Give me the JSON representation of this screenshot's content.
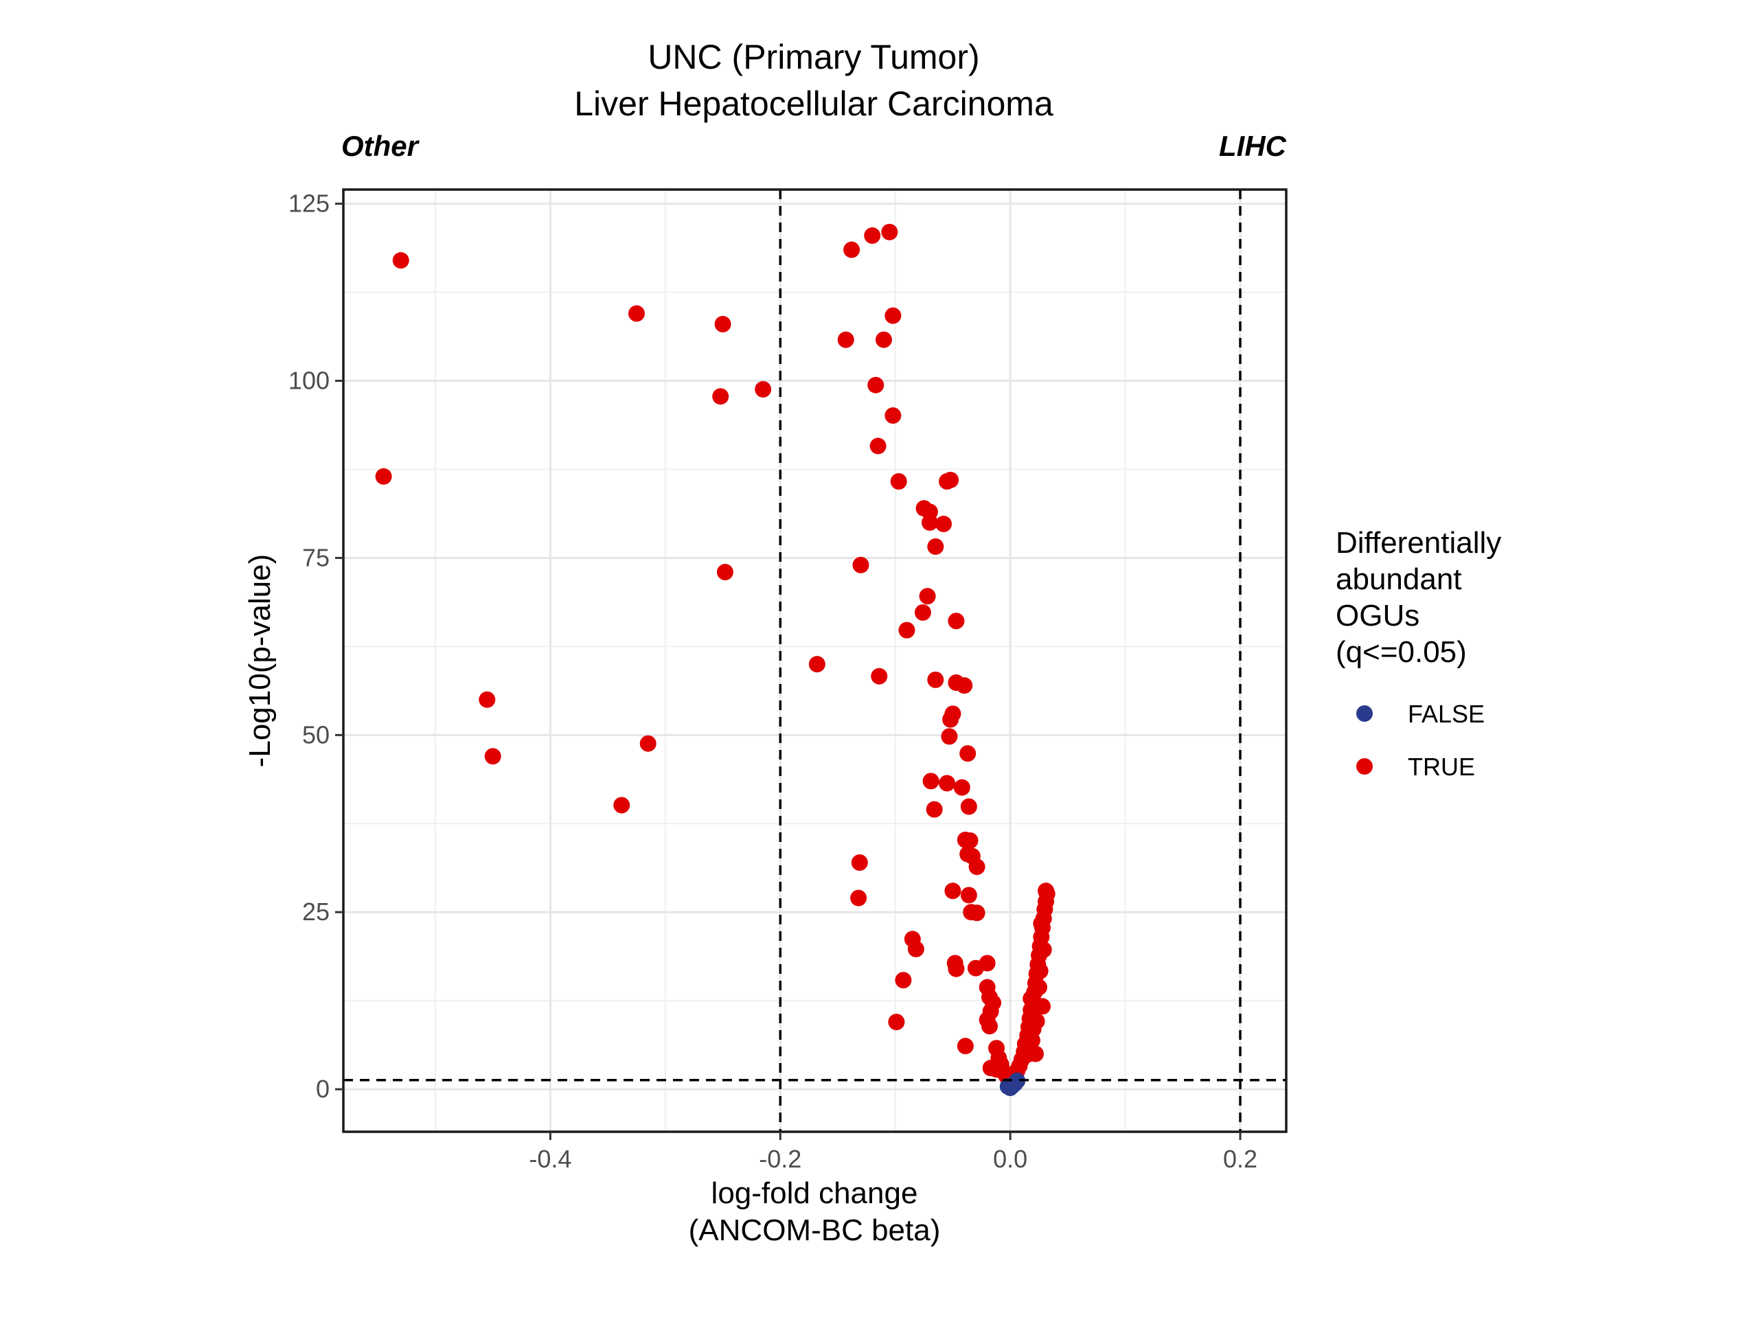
{
  "chart_data": {
    "type": "scatter",
    "title": "UNC (Primary Tumor)",
    "subtitle": "Liver Hepatocellular Carcinoma",
    "left_group_label": "Other",
    "right_group_label": "LIHC",
    "xlabel_line1": "log-fold change",
    "xlabel_line2": "(ANCOM-BC beta)",
    "ylabel": "-Log10(p-value)",
    "xlim": [
      -0.58,
      0.24
    ],
    "ylim": [
      -6,
      127
    ],
    "x_ticks": [
      -0.4,
      -0.2,
      0.0,
      0.2
    ],
    "x_tick_labels": [
      "-0.4",
      "-0.2",
      "0.0",
      "0.2"
    ],
    "y_ticks": [
      0,
      25,
      50,
      75,
      100,
      125
    ],
    "y_tick_labels": [
      "0",
      "25",
      "50",
      "75",
      "100",
      "125"
    ],
    "grid": true,
    "reference_lines": {
      "x": [
        -0.2,
        0.2
      ],
      "y": [
        1.3
      ]
    },
    "legend": {
      "title_lines": [
        "Differentially",
        "abundant",
        "OGUs",
        "(q<=0.05)"
      ],
      "position": "right",
      "items": [
        {
          "label": "FALSE",
          "color": "#2a3a8c"
        },
        {
          "label": "TRUE",
          "color": "#e00000"
        }
      ]
    },
    "series": [
      {
        "name": "TRUE",
        "color": "#e00000",
        "points": [
          [
            -0.53,
            117
          ],
          [
            -0.545,
            86.5
          ],
          [
            -0.325,
            109.5
          ],
          [
            -0.25,
            108
          ],
          [
            -0.252,
            97.8
          ],
          [
            -0.215,
            98.8
          ],
          [
            -0.248,
            73
          ],
          [
            -0.455,
            55
          ],
          [
            -0.45,
            47
          ],
          [
            -0.315,
            48.8
          ],
          [
            -0.338,
            40.1
          ],
          [
            -0.168,
            60
          ],
          [
            -0.138,
            118.5
          ],
          [
            -0.12,
            120.5
          ],
          [
            -0.105,
            121
          ],
          [
            -0.102,
            109.2
          ],
          [
            -0.143,
            105.8
          ],
          [
            -0.11,
            105.8
          ],
          [
            -0.117,
            99.4
          ],
          [
            -0.102,
            95.1
          ],
          [
            -0.115,
            90.8
          ],
          [
            -0.097,
            85.8
          ],
          [
            -0.052,
            86
          ],
          [
            -0.055,
            85.8
          ],
          [
            -0.075,
            82
          ],
          [
            -0.07,
            81.5
          ],
          [
            -0.07,
            80
          ],
          [
            -0.058,
            79.8
          ],
          [
            -0.065,
            76.6
          ],
          [
            -0.13,
            74
          ],
          [
            -0.072,
            69.6
          ],
          [
            -0.076,
            67.3
          ],
          [
            -0.09,
            64.8
          ],
          [
            -0.047,
            66.1
          ],
          [
            -0.114,
            58.3
          ],
          [
            -0.065,
            57.8
          ],
          [
            -0.047,
            57.4
          ],
          [
            -0.04,
            57
          ],
          [
            -0.05,
            53
          ],
          [
            -0.052,
            52.2
          ],
          [
            -0.053,
            49.8
          ],
          [
            -0.037,
            47.4
          ],
          [
            -0.069,
            43.5
          ],
          [
            -0.055,
            43.2
          ],
          [
            -0.042,
            42.6
          ],
          [
            -0.066,
            39.5
          ],
          [
            -0.036,
            39.9
          ],
          [
            -0.039,
            35.2
          ],
          [
            -0.035,
            35.1
          ],
          [
            -0.037,
            33.2
          ],
          [
            -0.033,
            32.9
          ],
          [
            -0.029,
            31.4
          ],
          [
            -0.131,
            32
          ],
          [
            -0.132,
            27
          ],
          [
            -0.05,
            28
          ],
          [
            -0.036,
            27.4
          ],
          [
            -0.034,
            25
          ],
          [
            -0.029,
            24.9
          ],
          [
            -0.085,
            21.2
          ],
          [
            -0.082,
            19.8
          ],
          [
            -0.048,
            17.8
          ],
          [
            -0.047,
            17
          ],
          [
            -0.03,
            17.1
          ],
          [
            -0.02,
            17.8
          ],
          [
            -0.093,
            15.4
          ],
          [
            -0.02,
            14.4
          ],
          [
            -0.018,
            13
          ],
          [
            -0.015,
            12.2
          ],
          [
            -0.017,
            11
          ],
          [
            -0.02,
            9.8
          ],
          [
            -0.018,
            8.9
          ],
          [
            -0.099,
            9.5
          ],
          [
            -0.039,
            6.1
          ],
          [
            -0.012,
            5.8
          ],
          [
            -0.01,
            4.4
          ],
          [
            -0.008,
            3.5
          ],
          [
            -0.017,
            3
          ],
          [
            -0.012,
            2.8
          ],
          [
            -0.005,
            2.3
          ],
          [
            -0.003,
            1.8
          ],
          [
            0.004,
            1.9
          ],
          [
            0.006,
            2.6
          ],
          [
            0.008,
            3.3
          ],
          [
            0.01,
            4.2
          ],
          [
            0.012,
            5.3
          ],
          [
            0.013,
            6.4
          ],
          [
            0.015,
            7.6
          ],
          [
            0.016,
            8.8
          ],
          [
            0.017,
            10
          ],
          [
            0.018,
            11.2
          ],
          [
            0.02,
            12.4
          ],
          [
            0.021,
            13.7
          ],
          [
            0.022,
            15
          ],
          [
            0.023,
            16.3
          ],
          [
            0.024,
            17.6
          ],
          [
            0.025,
            18.9
          ],
          [
            0.026,
            20.2
          ],
          [
            0.027,
            21.5
          ],
          [
            0.028,
            22.8
          ],
          [
            0.029,
            24.1
          ],
          [
            0.03,
            25.4
          ],
          [
            0.031,
            26.5
          ],
          [
            0.032,
            27.6
          ],
          [
            0.031,
            28
          ],
          [
            0.028,
            11.7
          ],
          [
            0.025,
            14.4
          ],
          [
            0.022,
            5
          ],
          [
            0.02,
            8.5
          ],
          [
            0.018,
            12.8
          ],
          [
            0.023,
            9.6
          ],
          [
            0.026,
            16.7
          ],
          [
            0.029,
            19.7
          ],
          [
            0.027,
            23.4
          ],
          [
            0.019,
            6.9
          ],
          [
            0.015,
            4.9
          ]
        ]
      },
      {
        "name": "FALSE",
        "color": "#2a3a8c",
        "points": [
          [
            0.0,
            0.2
          ],
          [
            0.002,
            0.5
          ],
          [
            0.004,
            0.8
          ],
          [
            -0.002,
            0.4
          ],
          [
            0.006,
            1.2
          ]
        ]
      }
    ]
  }
}
